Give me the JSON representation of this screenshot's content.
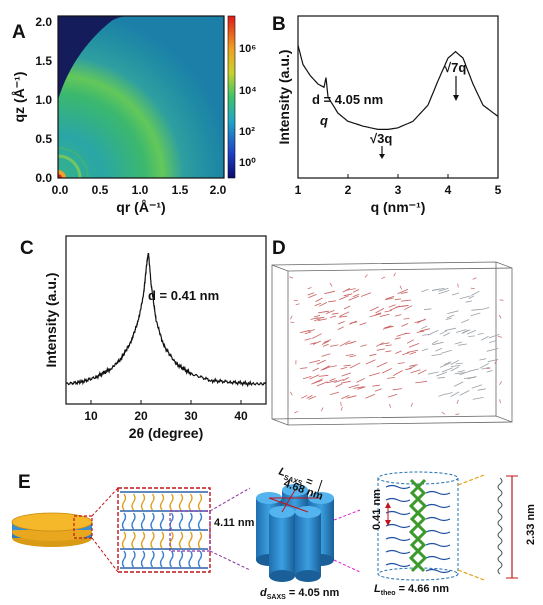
{
  "panels": {
    "A": {
      "label": "A",
      "xlabel": "qr (Å⁻¹)",
      "ylabel": "qz (Å⁻¹)",
      "xticks": [
        "0.0",
        "0.5",
        "1.0",
        "1.5",
        "2.0"
      ],
      "yticks": [
        "0.0",
        "0.5",
        "1.0",
        "1.5",
        "2.0"
      ],
      "colorbar_ticks": [
        "10⁶",
        "10⁴",
        "10²",
        "10⁰"
      ]
    },
    "B": {
      "label": "B",
      "xlabel": "q (nm⁻¹)",
      "ylabel": "Intensity (a.u.)",
      "xticks": [
        "1",
        "2",
        "3",
        "4",
        "5"
      ],
      "annotations": {
        "d": "d = 4.05 nm",
        "q": "q",
        "sqrt3q": "√3q",
        "sqrt7q": "√7q"
      }
    },
    "C": {
      "label": "C",
      "xlabel": "2θ (degree)",
      "ylabel": "Intensity (a.u.)",
      "xticks": [
        "10",
        "20",
        "30",
        "40"
      ],
      "annotation": "d = 0.41 nm"
    },
    "D": {
      "label": "D"
    },
    "E": {
      "label": "E",
      "dim_411": "4.11 nm",
      "lsaxs": "L_SAXS = 4.68 nm",
      "lsaxs_sym": "L",
      "lsaxs_sub": "SAXS",
      "lsaxs_eq": " =",
      "lsaxs_val": "4.68 nm",
      "dsaxs_sym": "d",
      "dsaxs_sub": "SAXS",
      "dsaxs_eq": " = 4.05 nm",
      "dim_041": "0.41 nm",
      "dim_233": "2.33 nm",
      "ltheo_sym": "L",
      "ltheo_sub": "theo",
      "ltheo_eq": " = 4.66 nm"
    }
  },
  "chart_data": [
    {
      "panel": "B",
      "type": "line",
      "xlabel": "q (nm⁻¹)",
      "ylabel": "Intensity (a.u.)",
      "xlim": [
        1,
        5
      ],
      "x": [
        1.0,
        1.1,
        1.25,
        1.4,
        1.52,
        1.56,
        1.6,
        1.8,
        2.0,
        2.3,
        2.6,
        2.8,
        3.0,
        3.3,
        3.6,
        3.8,
        4.0,
        4.15,
        4.3,
        4.5,
        4.7,
        5.0
      ],
      "y": [
        0.82,
        0.7,
        0.63,
        0.58,
        0.56,
        0.62,
        0.5,
        0.4,
        0.35,
        0.32,
        0.3,
        0.3,
        0.31,
        0.35,
        0.45,
        0.6,
        0.74,
        0.78,
        0.74,
        0.58,
        0.45,
        0.38
      ]
    },
    {
      "panel": "C",
      "type": "line",
      "xlabel": "2θ (degree)",
      "ylabel": "Intensity (a.u.)",
      "xlim": [
        5,
        45
      ],
      "x": [
        5,
        8,
        11,
        14,
        16,
        18,
        19.5,
        20.5,
        21.2,
        21.5,
        22.0,
        23,
        24.5,
        27,
        30,
        34,
        38,
        42,
        45
      ],
      "y": [
        0.12,
        0.13,
        0.16,
        0.21,
        0.27,
        0.37,
        0.5,
        0.65,
        0.85,
        0.9,
        0.72,
        0.5,
        0.35,
        0.24,
        0.18,
        0.14,
        0.13,
        0.12,
        0.12
      ]
    }
  ]
}
